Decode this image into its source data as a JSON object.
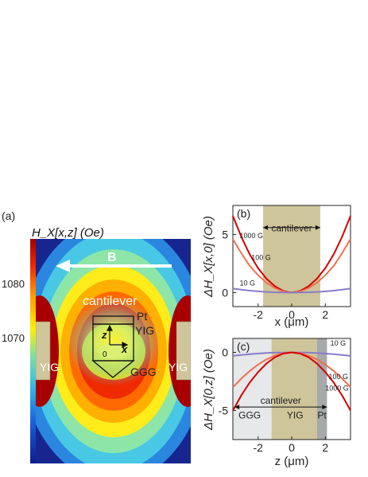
{
  "panel_a": {
    "label": "(a)",
    "colorbar_title": "H_X[x,z] (Oe)",
    "colorbar_ticks": [
      {
        "label": "1080",
        "value": 1080
      },
      {
        "label": "1070",
        "value": 1070
      }
    ],
    "field_label": "B",
    "annotations": {
      "cantilever": "cantilever",
      "pt": "Pt",
      "yig_tip": "YIG",
      "ggg": "GGG",
      "yig_left": "YIG",
      "yig_right": "YIG",
      "axis_z": "z",
      "axis_x": "x",
      "origin": "0"
    },
    "colors": {
      "low": "#0a1e8c",
      "mid": "#ffe000",
      "high": "#b00000",
      "magnet": "#cfc59a",
      "arrow": "#ffffff"
    }
  },
  "chart_data": [
    {
      "type": "line",
      "label": "(b)",
      "ylabel": "ΔH_X[x,0] (Oe)",
      "xlabel": "x (μm)",
      "xlim": [
        -3.5,
        3.5
      ],
      "ylim": [
        -1.2,
        7.5
      ],
      "xticks": [
        {
          "label": "-2",
          "value": -2
        },
        {
          "label": "0",
          "value": 0
        },
        {
          "label": "2",
          "value": 2
        }
      ],
      "yticks": [
        {
          "label": "0",
          "value": 0
        },
        {
          "label": "5",
          "value": 5
        }
      ],
      "shaded_region": {
        "x": [
          -1.7,
          1.7
        ],
        "label": "cantilever",
        "color": "#cfc59a"
      },
      "series": [
        {
          "name": "1000 G",
          "color": "#d40000",
          "x": [
            -3.5,
            -3,
            -2.5,
            -2,
            -1.5,
            -1,
            -0.5,
            0,
            0.5,
            1,
            1.5,
            2,
            2.5,
            3,
            3.5
          ],
          "y": [
            6.6,
            4.8,
            3.3,
            2.1,
            1.2,
            0.55,
            0.14,
            0,
            0.14,
            0.55,
            1.2,
            2.1,
            3.3,
            4.8,
            6.6
          ]
        },
        {
          "name": "100 G",
          "color": "#f07050",
          "x": [
            -3.5,
            -3,
            -2.5,
            -2,
            -1.5,
            -1,
            -0.5,
            0,
            0.5,
            1,
            1.5,
            2,
            2.5,
            3,
            3.5
          ],
          "y": [
            4.6,
            3.4,
            2.3,
            1.5,
            0.85,
            0.38,
            0.1,
            0,
            0.1,
            0.38,
            0.85,
            1.5,
            2.3,
            3.4,
            4.6
          ]
        },
        {
          "name": "10 G",
          "color": "#8a7bc8",
          "x": [
            -3.5,
            -3,
            -2.5,
            -2,
            -1.5,
            -1,
            -0.5,
            0,
            0.5,
            1,
            1.5,
            2,
            2.5,
            3,
            3.5
          ],
          "y": [
            0.35,
            0.25,
            0.17,
            0.11,
            0.06,
            0.03,
            0.01,
            0,
            0.01,
            0.03,
            0.06,
            0.11,
            0.17,
            0.25,
            0.35
          ]
        }
      ]
    },
    {
      "type": "line",
      "label": "(c)",
      "ylabel": "ΔH_X[0,z] (Oe)",
      "xlabel": "z (μm)",
      "xlim": [
        -3.5,
        3.5
      ],
      "ylim": [
        -7.5,
        1.2
      ],
      "xticks": [
        {
          "label": "-2",
          "value": -2
        },
        {
          "label": "0",
          "value": 0
        },
        {
          "label": "2",
          "value": 2
        }
      ],
      "yticks": [
        {
          "label": "0",
          "value": 0
        },
        {
          "label": "-5",
          "value": -5
        }
      ],
      "regions": [
        {
          "x": [
            -3.5,
            -1.2
          ],
          "label": "GGG",
          "color": "#e6e8ea"
        },
        {
          "x": [
            -1.2,
            1.5
          ],
          "label": "YIG",
          "color": "#cfc59a"
        },
        {
          "x": [
            1.5,
            2.1
          ],
          "label": "Pt",
          "color": "#a6a8aa"
        }
      ],
      "span_label": "cantilever",
      "series": [
        {
          "name": "10 G",
          "color": "#8a7bc8",
          "x": [
            -3.5,
            -3,
            -2.5,
            -2,
            -1.5,
            -1,
            -0.5,
            0,
            0.5,
            1,
            1.5,
            2,
            2.5,
            3,
            3.5
          ],
          "y": [
            -0.3,
            -0.22,
            -0.15,
            -0.1,
            -0.05,
            -0.02,
            -0.01,
            0,
            -0.01,
            -0.02,
            -0.05,
            -0.1,
            -0.15,
            -0.22,
            -0.3
          ]
        },
        {
          "name": "100 G",
          "color": "#f07050",
          "x": [
            -3.5,
            -3,
            -2.5,
            -2,
            -1.5,
            -1,
            -0.5,
            0,
            0.5,
            1,
            1.5,
            2,
            2.5,
            3,
            3.5
          ],
          "y": [
            -3.0,
            -2.25,
            -1.6,
            -1.05,
            -0.6,
            -0.28,
            -0.07,
            0,
            -0.07,
            -0.28,
            -0.6,
            -1.05,
            -1.6,
            -2.25,
            -3.0
          ]
        },
        {
          "name": "1000 G",
          "color": "#d40000",
          "x": [
            -3.5,
            -3,
            -2.5,
            -2,
            -1.5,
            -1,
            -0.5,
            0,
            0.5,
            1,
            1.5,
            2,
            2.5,
            3,
            3.5
          ],
          "y": [
            -5.0,
            -3.7,
            -2.6,
            -1.7,
            -0.95,
            -0.42,
            -0.1,
            0,
            -0.1,
            -0.42,
            -0.95,
            -1.7,
            -2.6,
            -3.7,
            -5.0
          ]
        }
      ]
    }
  ]
}
